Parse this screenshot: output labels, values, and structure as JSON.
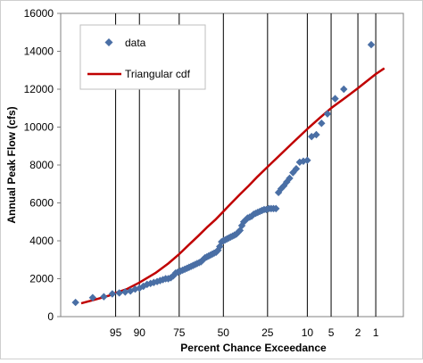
{
  "chart_data": {
    "type": "scatter",
    "title": "",
    "xlabel": "Percent Chance Exceedance",
    "ylabel": "Annual Peak Flow (cfs)",
    "x_scale": "normal-probability",
    "x_reversed": true,
    "y_range": [
      0,
      16000
    ],
    "y_ticks": [
      "0",
      "2000",
      "4000",
      "6000",
      "8000",
      "10000",
      "12000",
      "14000",
      "16000"
    ],
    "x_ticks": [
      "95",
      "90",
      "75",
      "50",
      "25",
      "10",
      "5",
      "2",
      "1"
    ],
    "x_tick_values": [
      95,
      90,
      75,
      50,
      25,
      10,
      5,
      2,
      1
    ],
    "gridlines": "vertical at x ticks",
    "legend_position": "top-left",
    "colors": {
      "data": "#4a6fa5",
      "cdf": "#c00000"
    },
    "series": [
      {
        "name": "data",
        "kind": "scatter",
        "marker": "diamond",
        "points": [
          [
            98.8,
            750
          ],
          [
            97.7,
            1000
          ],
          [
            96.6,
            1050
          ],
          [
            95.5,
            1200
          ],
          [
            94.4,
            1250
          ],
          [
            93.3,
            1300
          ],
          [
            92.2,
            1350
          ],
          [
            91.1,
            1450
          ],
          [
            90.0,
            1500
          ],
          [
            88.9,
            1600
          ],
          [
            87.8,
            1700
          ],
          [
            86.7,
            1750
          ],
          [
            85.6,
            1800
          ],
          [
            84.4,
            1850
          ],
          [
            83.3,
            1900
          ],
          [
            82.2,
            1950
          ],
          [
            81.1,
            2000
          ],
          [
            80.0,
            2000
          ],
          [
            78.9,
            2050
          ],
          [
            77.8,
            2150
          ],
          [
            76.7,
            2300
          ],
          [
            75.6,
            2350
          ],
          [
            74.4,
            2400
          ],
          [
            73.3,
            2450
          ],
          [
            72.2,
            2500
          ],
          [
            71.1,
            2550
          ],
          [
            70.0,
            2600
          ],
          [
            68.9,
            2650
          ],
          [
            67.8,
            2700
          ],
          [
            66.7,
            2750
          ],
          [
            65.6,
            2800
          ],
          [
            64.4,
            2850
          ],
          [
            63.3,
            2900
          ],
          [
            62.2,
            3000
          ],
          [
            61.1,
            3100
          ],
          [
            60.0,
            3150
          ],
          [
            58.9,
            3200
          ],
          [
            57.8,
            3250
          ],
          [
            56.7,
            3300
          ],
          [
            55.6,
            3350
          ],
          [
            54.4,
            3400
          ],
          [
            53.3,
            3500
          ],
          [
            52.2,
            3700
          ],
          [
            51.1,
            3950
          ],
          [
            50.0,
            4000
          ],
          [
            48.9,
            4050
          ],
          [
            47.8,
            4100
          ],
          [
            46.7,
            4150
          ],
          [
            45.6,
            4200
          ],
          [
            44.4,
            4250
          ],
          [
            43.3,
            4300
          ],
          [
            42.2,
            4350
          ],
          [
            41.1,
            4450
          ],
          [
            40.0,
            4550
          ],
          [
            38.9,
            4800
          ],
          [
            37.8,
            5000
          ],
          [
            36.7,
            5100
          ],
          [
            35.6,
            5200
          ],
          [
            34.4,
            5250
          ],
          [
            33.3,
            5300
          ],
          [
            32.2,
            5400
          ],
          [
            31.1,
            5450
          ],
          [
            30.0,
            5500
          ],
          [
            28.9,
            5550
          ],
          [
            27.8,
            5600
          ],
          [
            26.7,
            5650
          ],
          [
            25.6,
            5650
          ],
          [
            24.4,
            5700
          ],
          [
            23.3,
            5700
          ],
          [
            22.2,
            5700
          ],
          [
            21.1,
            5700
          ],
          [
            20.0,
            6550
          ],
          [
            18.9,
            6750
          ],
          [
            17.8,
            6900
          ],
          [
            16.7,
            7100
          ],
          [
            15.6,
            7300
          ],
          [
            14.4,
            7600
          ],
          [
            13.3,
            7800
          ],
          [
            12.2,
            8150
          ],
          [
            11.1,
            8200
          ],
          [
            10.0,
            8250
          ],
          [
            8.9,
            9500
          ],
          [
            7.8,
            9600
          ],
          [
            6.7,
            10200
          ],
          [
            5.6,
            10700
          ],
          [
            4.4,
            11500
          ],
          [
            3.3,
            12000
          ],
          [
            1.2,
            14350
          ]
        ]
      },
      {
        "name": "Triangular cdf",
        "kind": "line",
        "points": [
          [
            98.5,
            700
          ],
          [
            97.5,
            900
          ],
          [
            96,
            1100
          ],
          [
            95,
            1250
          ],
          [
            93,
            1450
          ],
          [
            90,
            1800
          ],
          [
            85,
            2300
          ],
          [
            80,
            2800
          ],
          [
            75,
            3300
          ],
          [
            70,
            3800
          ],
          [
            65,
            4250
          ],
          [
            60,
            4700
          ],
          [
            55,
            5100
          ],
          [
            50,
            5550
          ],
          [
            45,
            6000
          ],
          [
            40,
            6450
          ],
          [
            35,
            6900
          ],
          [
            30,
            7400
          ],
          [
            25,
            7900
          ],
          [
            20,
            8450
          ],
          [
            15,
            9100
          ],
          [
            10,
            9900
          ],
          [
            7,
            10500
          ],
          [
            5,
            11000
          ],
          [
            3,
            11600
          ],
          [
            2,
            12050
          ],
          [
            1,
            12800
          ],
          [
            0.7,
            13100
          ]
        ]
      }
    ]
  }
}
